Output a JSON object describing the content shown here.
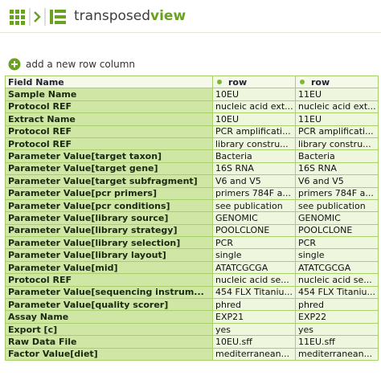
{
  "header": {
    "title_main": "transposed",
    "title_accent": "view"
  },
  "add_link": "add a new row column",
  "table": {
    "columns": [
      "Field Name",
      "row",
      "row"
    ],
    "rows": [
      [
        "Sample Name",
        "10EU",
        "11EU"
      ],
      [
        "Protocol REF",
        "nucleic acid ext...",
        "nucleic acid ext..."
      ],
      [
        "Extract Name",
        "10EU",
        "11EU"
      ],
      [
        "Protocol REF",
        "PCR amplificati...",
        "PCR amplificati..."
      ],
      [
        "Protocol REF",
        "library constru...",
        "library constru..."
      ],
      [
        "Parameter Value[target taxon]",
        "Bacteria",
        "Bacteria"
      ],
      [
        "Parameter Value[target gene]",
        "16S RNA",
        "16S RNA"
      ],
      [
        "Parameter Value[target subfragment]",
        "V6 and V5",
        "V6 and V5"
      ],
      [
        "Parameter Value[pcr primers]",
        "primers 784F a...",
        "primers 784F a..."
      ],
      [
        "Parameter Value[pcr conditions]",
        "see publication",
        "see publication"
      ],
      [
        "Parameter Value[library source]",
        "GENOMIC",
        "GENOMIC"
      ],
      [
        "Parameter Value[library strategy]",
        "POOLCLONE",
        "POOLCLONE"
      ],
      [
        "Parameter Value[library selection]",
        "PCR",
        "PCR"
      ],
      [
        "Parameter Value[library layout]",
        "single",
        "single"
      ],
      [
        "Parameter Value[mid]",
        "ATATCGCGA",
        "ATATCGCGA"
      ],
      [
        "Protocol REF",
        "nucleic acid se...",
        "nucleic acid se..."
      ],
      [
        "Parameter Value[sequencing instrum...",
        "454 FLX Titaniu...",
        "454 FLX Titaniu..."
      ],
      [
        "Parameter Value[quality scorer]",
        "phred",
        "phred"
      ],
      [
        "Assay Name",
        "EXP21",
        "EXP22"
      ],
      [
        "Export [c]",
        "yes",
        "yes"
      ],
      [
        "Raw Data File",
        "10EU.sff",
        "11EU.sff"
      ],
      [
        "Factor Value[diet]",
        "mediterranean...",
        "mediterranean..."
      ]
    ]
  }
}
